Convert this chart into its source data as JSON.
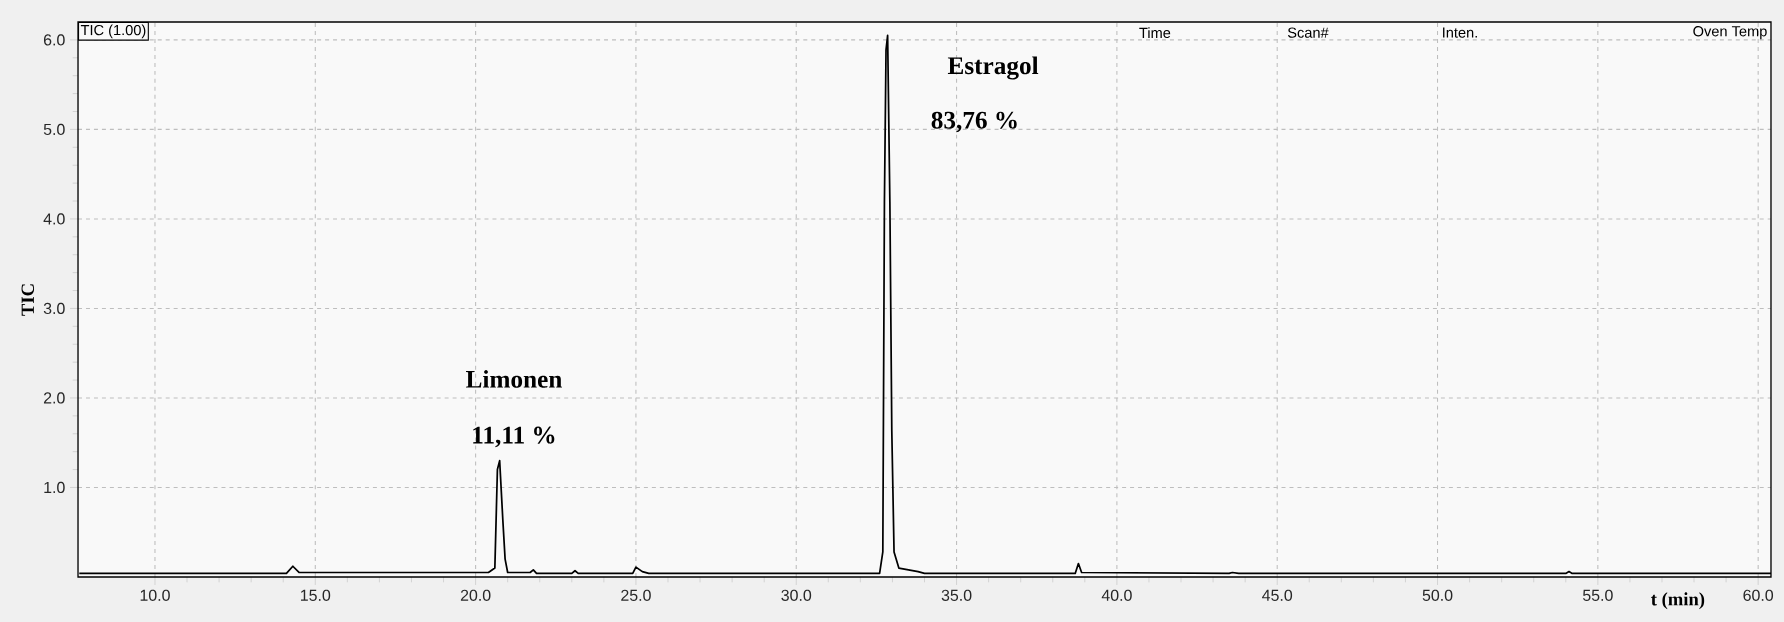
{
  "chart_data": {
    "type": "line",
    "xlabel": "t (min)",
    "ylabel": "TIC",
    "xlim": [
      7.6,
      60.4
    ],
    "ylim": [
      0,
      6.2
    ],
    "xticks": [
      {
        "value": 10,
        "label": "10.0"
      },
      {
        "value": 15,
        "label": "15.0"
      },
      {
        "value": 20,
        "label": "20.0"
      },
      {
        "value": 25,
        "label": "25.0"
      },
      {
        "value": 30,
        "label": "30.0"
      },
      {
        "value": 35,
        "label": "35.0"
      },
      {
        "value": 40,
        "label": "40.0"
      },
      {
        "value": 45,
        "label": "45.0"
      },
      {
        "value": 50,
        "label": "50.0"
      },
      {
        "value": 55,
        "label": "55.0"
      },
      {
        "value": 60,
        "label": "60.0"
      }
    ],
    "yticks": [
      {
        "value": 1,
        "label": "1.0"
      },
      {
        "value": 2,
        "label": "2.0"
      },
      {
        "value": 3,
        "label": "3.0"
      },
      {
        "value": 4,
        "label": "4.0"
      },
      {
        "value": 5,
        "label": "5.0"
      },
      {
        "value": 6,
        "label": "6.0"
      }
    ],
    "grid": true,
    "marker": "none",
    "line_style": "solid",
    "annotations": [
      "TIC (1.00)",
      "Time",
      "Scan#",
      "Inten.",
      "Oven Temp",
      "Limonen",
      "11,11 %",
      "Estragol",
      "83,76 %"
    ],
    "series": [
      {
        "color": "#000000",
        "x": [
          7.64,
          14.1,
          14.3,
          14.5,
          17.0,
          20.4,
          20.6,
          20.68,
          20.75,
          20.85,
          20.92,
          21.0,
          21.7,
          21.8,
          21.9,
          23.0,
          23.1,
          23.2,
          24.9,
          25.0,
          25.2,
          25.4,
          32.6,
          32.7,
          32.75,
          32.8,
          32.85,
          32.92,
          32.98,
          33.05,
          33.2,
          33.8,
          34.0,
          38.7,
          38.8,
          38.9,
          43.5,
          43.6,
          43.8,
          54.0,
          54.1,
          54.2,
          60.4
        ],
        "values": [
          0.04,
          0.04,
          0.12,
          0.05,
          0.05,
          0.05,
          0.1,
          1.2,
          1.3,
          0.63,
          0.2,
          0.05,
          0.05,
          0.08,
          0.04,
          0.04,
          0.07,
          0.04,
          0.04,
          0.11,
          0.06,
          0.04,
          0.04,
          0.28,
          4.19,
          5.89,
          6.05,
          4.19,
          1.63,
          0.28,
          0.1,
          0.06,
          0.04,
          0.04,
          0.15,
          0.05,
          0.04,
          0.05,
          0.04,
          0.04,
          0.06,
          0.04,
          0.04
        ]
      }
    ]
  }
}
